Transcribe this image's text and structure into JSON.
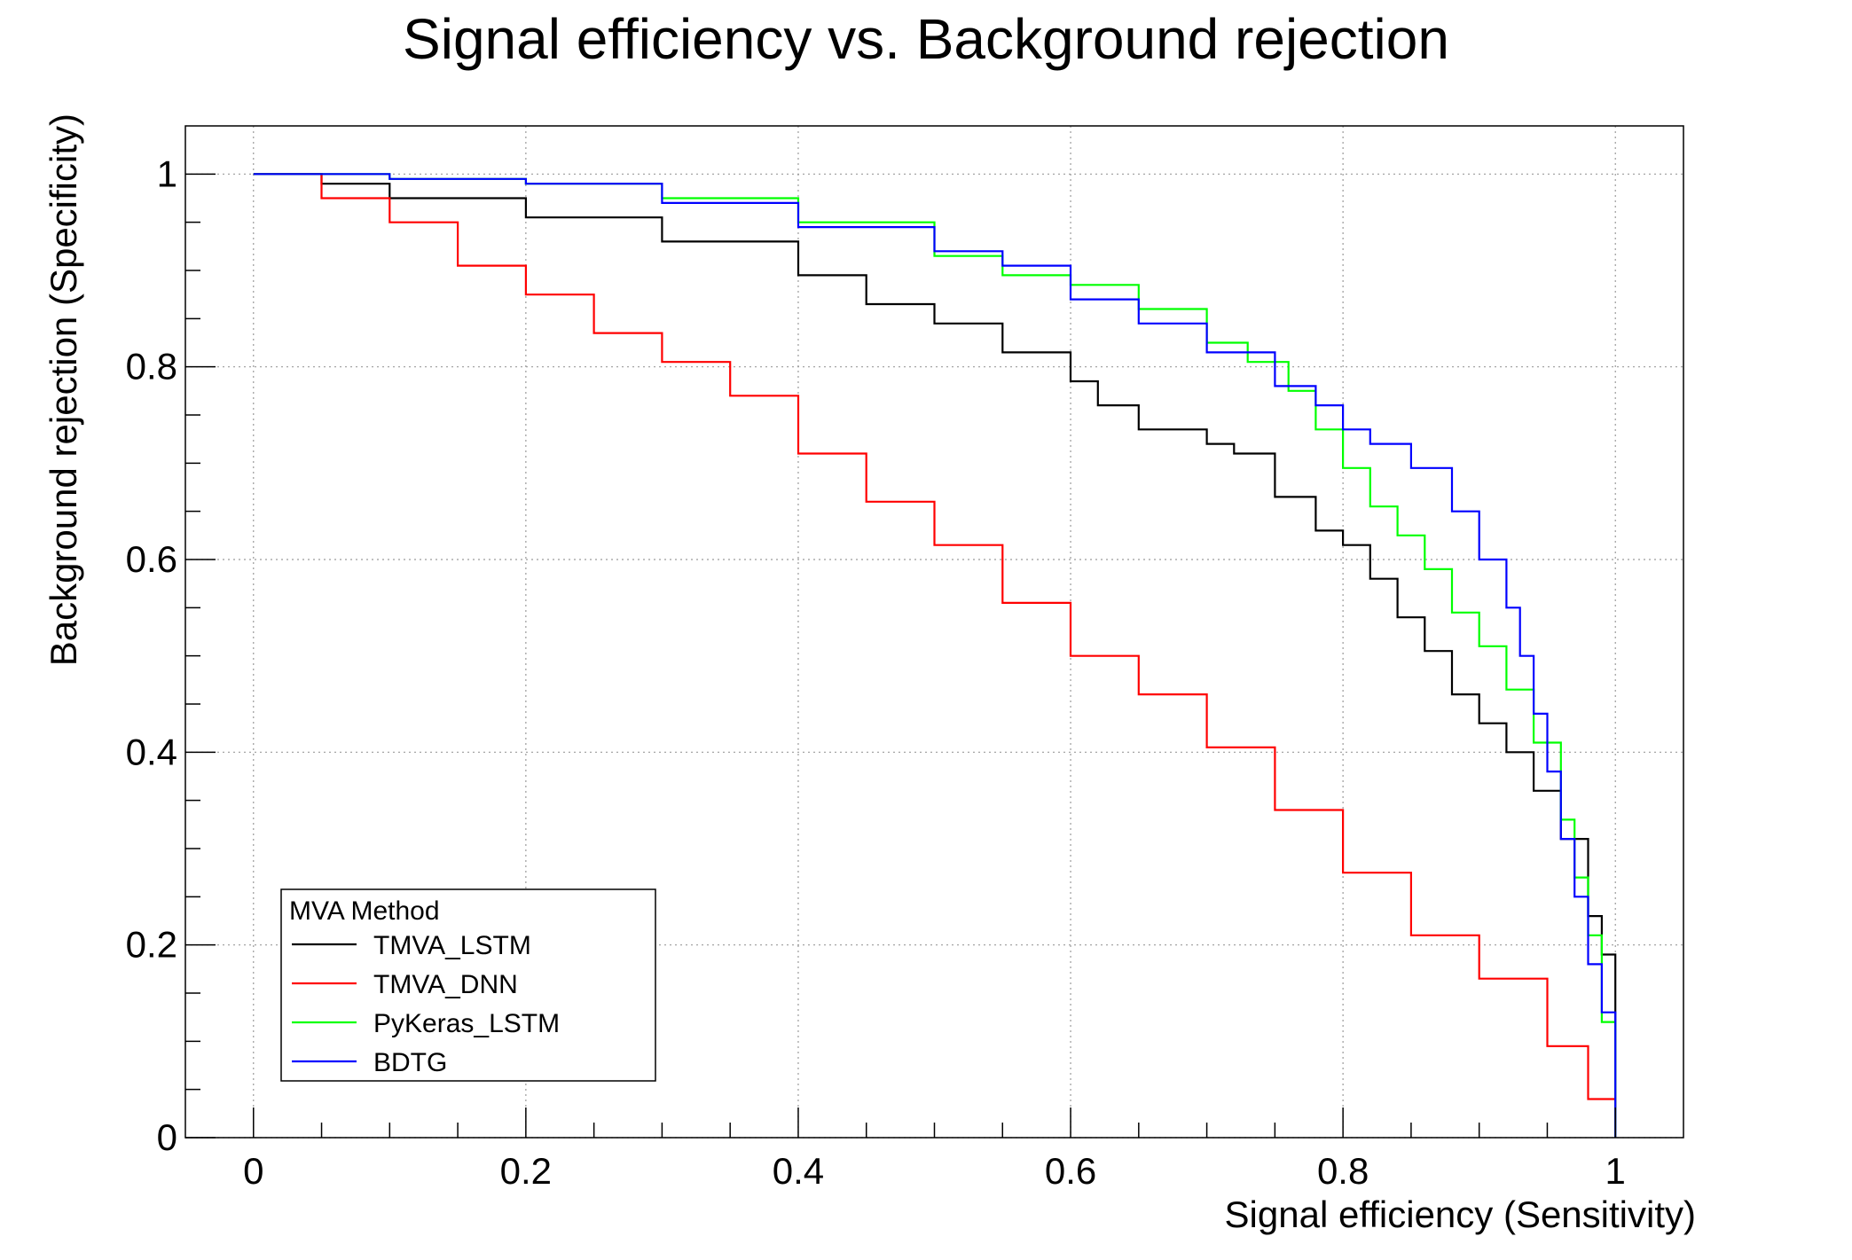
{
  "chart_data": {
    "type": "line",
    "title": "Signal efficiency vs. Background rejection",
    "xlabel": "Signal efficiency (Sensitivity)",
    "ylabel": "Background rejection (Specificity)",
    "xlim": [
      -0.05,
      1.05
    ],
    "ylim": [
      0,
      1.05
    ],
    "xticks": [
      0,
      0.2,
      0.4,
      0.6,
      0.8,
      1
    ],
    "xtick_labels": [
      "0",
      "0.2",
      "0.4",
      "0.6",
      "0.8",
      "1"
    ],
    "yticks": [
      0,
      0.2,
      0.4,
      0.6,
      0.8,
      1
    ],
    "ytick_labels": [
      "0",
      "0.2",
      "0.4",
      "0.6",
      "0.8",
      "1"
    ],
    "grid": true,
    "legend": {
      "title": "MVA Method",
      "position": "bottom-left"
    },
    "series": [
      {
        "name": "TMVA_LSTM",
        "color": "#000000",
        "x": [
          0.0,
          0.05,
          0.1,
          0.2,
          0.3,
          0.4,
          0.45,
          0.5,
          0.55,
          0.6,
          0.62,
          0.65,
          0.7,
          0.72,
          0.75,
          0.78,
          0.8,
          0.82,
          0.84,
          0.86,
          0.88,
          0.9,
          0.92,
          0.94,
          0.96,
          0.98,
          0.99,
          1.0,
          1.0
        ],
        "y": [
          1.0,
          0.99,
          0.975,
          0.955,
          0.93,
          0.895,
          0.865,
          0.845,
          0.815,
          0.785,
          0.76,
          0.735,
          0.72,
          0.71,
          0.665,
          0.63,
          0.615,
          0.58,
          0.54,
          0.505,
          0.46,
          0.43,
          0.4,
          0.36,
          0.31,
          0.23,
          0.19,
          0.14,
          0.0
        ]
      },
      {
        "name": "TMVA_DNN",
        "color": "#ff0000",
        "x": [
          0.0,
          0.05,
          0.1,
          0.15,
          0.2,
          0.25,
          0.3,
          0.35,
          0.4,
          0.45,
          0.5,
          0.55,
          0.6,
          0.65,
          0.7,
          0.75,
          0.8,
          0.85,
          0.9,
          0.95,
          0.98,
          1.0
        ],
        "y": [
          1.0,
          0.975,
          0.95,
          0.905,
          0.875,
          0.835,
          0.805,
          0.77,
          0.71,
          0.66,
          0.615,
          0.555,
          0.5,
          0.46,
          0.405,
          0.34,
          0.275,
          0.21,
          0.165,
          0.095,
          0.04,
          0.0
        ]
      },
      {
        "name": "PyKeras_LSTM",
        "color": "#00ff00",
        "x": [
          0.0,
          0.1,
          0.2,
          0.3,
          0.4,
          0.5,
          0.55,
          0.6,
          0.65,
          0.7,
          0.73,
          0.76,
          0.78,
          0.8,
          0.82,
          0.84,
          0.86,
          0.88,
          0.9,
          0.92,
          0.94,
          0.96,
          0.97,
          0.98,
          0.99,
          1.0,
          1.0
        ],
        "y": [
          1.0,
          0.995,
          0.99,
          0.975,
          0.95,
          0.915,
          0.895,
          0.885,
          0.86,
          0.825,
          0.805,
          0.775,
          0.735,
          0.695,
          0.655,
          0.625,
          0.59,
          0.545,
          0.51,
          0.465,
          0.41,
          0.33,
          0.27,
          0.21,
          0.12,
          0.05,
          0.0
        ]
      },
      {
        "name": "BDTG",
        "color": "#0000ff",
        "x": [
          0.0,
          0.1,
          0.2,
          0.3,
          0.4,
          0.5,
          0.55,
          0.6,
          0.65,
          0.7,
          0.75,
          0.78,
          0.8,
          0.82,
          0.85,
          0.88,
          0.9,
          0.92,
          0.93,
          0.94,
          0.95,
          0.96,
          0.97,
          0.98,
          0.99,
          1.0,
          1.0
        ],
        "y": [
          1.0,
          0.995,
          0.99,
          0.97,
          0.945,
          0.92,
          0.905,
          0.87,
          0.845,
          0.815,
          0.78,
          0.76,
          0.735,
          0.72,
          0.695,
          0.65,
          0.6,
          0.55,
          0.5,
          0.44,
          0.38,
          0.31,
          0.25,
          0.18,
          0.13,
          0.1,
          0.0
        ]
      }
    ]
  }
}
